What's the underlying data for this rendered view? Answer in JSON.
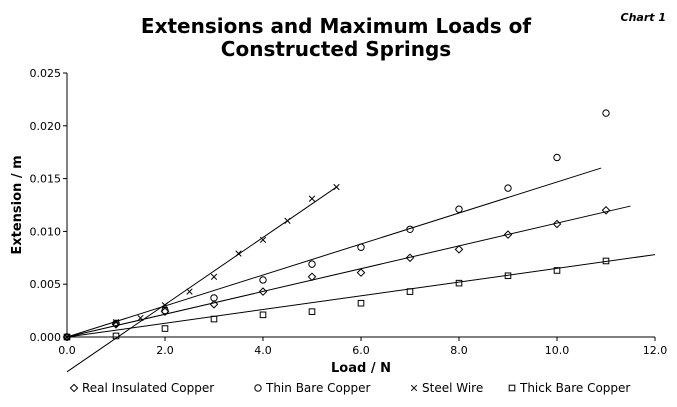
{
  "chart_label": "Chart 1",
  "chart_data": {
    "type": "scatter",
    "title": "Extensions and Maximum Loads of\nConstructed Springs",
    "xlabel": "Load / N",
    "ylabel": "Extension / m",
    "xlim": [
      0,
      12
    ],
    "ylim": [
      0,
      0.025
    ],
    "x_ticks": [
      "0.0",
      "2.0",
      "4.0",
      "6.0",
      "8.0",
      "10.0",
      "12.0"
    ],
    "y_ticks": [
      "0.000",
      "0.005",
      "0.010",
      "0.015",
      "0.020",
      "0.025"
    ],
    "grid": false,
    "legend_position": "bottom",
    "series": [
      {
        "name": "Real Insulated Copper",
        "marker": "diamond",
        "points": [
          [
            0,
            0
          ],
          [
            1,
            0.0012
          ],
          [
            2,
            0.0024
          ],
          [
            3,
            0.0031
          ],
          [
            4,
            0.0043
          ],
          [
            5,
            0.0057
          ],
          [
            6,
            0.0061
          ],
          [
            7,
            0.0075
          ],
          [
            8,
            0.0083
          ],
          [
            9,
            0.0097
          ],
          [
            10,
            0.0107
          ],
          [
            11,
            0.012
          ]
        ],
        "trendline": [
          [
            0,
            0
          ],
          [
            11.5,
            0.0124
          ]
        ]
      },
      {
        "name": "Thin Bare Copper",
        "marker": "circle",
        "points": [
          [
            0,
            0
          ],
          [
            1,
            0.0013
          ],
          [
            2,
            0.0025
          ],
          [
            3,
            0.0037
          ],
          [
            4,
            0.0054
          ],
          [
            5,
            0.0069
          ],
          [
            6,
            0.0085
          ],
          [
            7,
            0.0102
          ],
          [
            8,
            0.0121
          ],
          [
            9,
            0.0141
          ],
          [
            10,
            0.017
          ],
          [
            11,
            0.0212
          ]
        ],
        "trendline": [
          [
            0,
            0
          ],
          [
            10.9,
            0.016
          ]
        ]
      },
      {
        "name": "Steel Wire",
        "marker": "x",
        "points": [
          [
            0,
            0
          ],
          [
            1,
            0.0014
          ],
          [
            1.5,
            0.0018
          ],
          [
            2,
            0.003
          ],
          [
            2.5,
            0.0043
          ],
          [
            3,
            0.0057
          ],
          [
            3.5,
            0.0079
          ],
          [
            4,
            0.0092
          ],
          [
            4.5,
            0.011
          ],
          [
            5,
            0.0131
          ],
          [
            5.5,
            0.0142
          ]
        ],
        "trendline": [
          [
            0,
            -0.0033
          ],
          [
            5.5,
            0.0142
          ]
        ]
      },
      {
        "name": "Thick Bare Copper",
        "marker": "square",
        "points": [
          [
            0,
            0
          ],
          [
            1,
            0.0001
          ],
          [
            2,
            0.0008
          ],
          [
            3,
            0.0017
          ],
          [
            4,
            0.0021
          ],
          [
            5,
            0.0024
          ],
          [
            6,
            0.0032
          ],
          [
            7,
            0.0043
          ],
          [
            8,
            0.0051
          ],
          [
            9,
            0.0058
          ],
          [
            10,
            0.0063
          ],
          [
            11,
            0.0072
          ]
        ],
        "trendline": [
          [
            0,
            0
          ],
          [
            12,
            0.0078
          ]
        ]
      }
    ]
  }
}
